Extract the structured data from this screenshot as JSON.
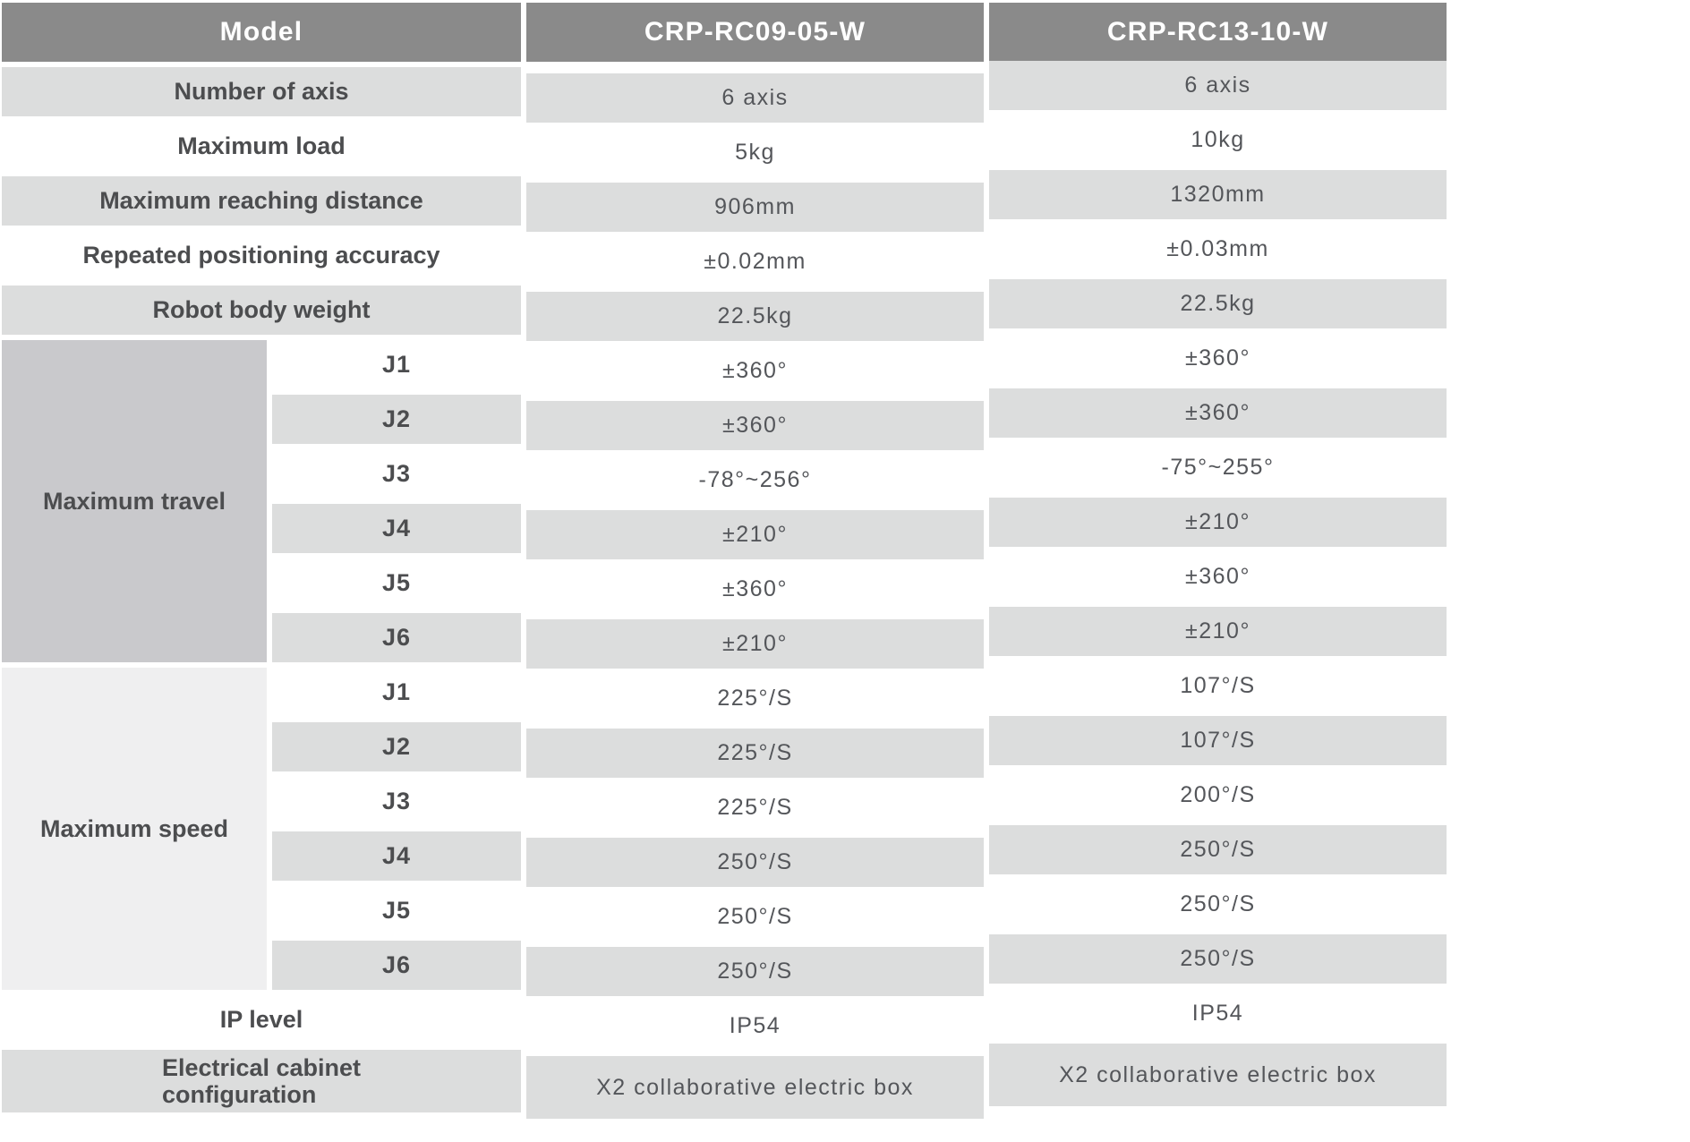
{
  "colors": {
    "header_bg": "#8a8a8a",
    "header_text": "#ffffff",
    "row_stripe": "#dcdddd",
    "travel_group_bg": "#c9c9cc",
    "speed_group_bg": "#efeff0",
    "label_text": "#4c4d4f",
    "value_text": "#54565a"
  },
  "header": {
    "model_label": "Model",
    "models": [
      "CRP-RC09-05-W",
      "CRP-RC13-10-W"
    ]
  },
  "top_rows": [
    {
      "label": "Number of axis",
      "values": [
        "6 axis",
        "6 axis"
      ]
    },
    {
      "label": "Maximum load",
      "values": [
        "5kg",
        "10kg"
      ]
    },
    {
      "label": "Maximum reaching distance",
      "values": [
        "906mm",
        "1320mm"
      ]
    },
    {
      "label": "Repeated positioning accuracy",
      "values": [
        "±0.02mm",
        "±0.03mm"
      ]
    },
    {
      "label": "Robot body weight",
      "values": [
        "22.5kg",
        "22.5kg"
      ]
    }
  ],
  "travel_group": {
    "label": "Maximum travel",
    "rows": [
      {
        "joint": "J1",
        "values": [
          "±360°",
          "±360°"
        ]
      },
      {
        "joint": "J2",
        "values": [
          "±360°",
          "±360°"
        ]
      },
      {
        "joint": "J3",
        "values": [
          "-78°~256°",
          "-75°~255°"
        ]
      },
      {
        "joint": "J4",
        "values": [
          "±210°",
          "±210°"
        ]
      },
      {
        "joint": "J5",
        "values": [
          "±360°",
          "±360°"
        ]
      },
      {
        "joint": "J6",
        "values": [
          "±210°",
          "±210°"
        ]
      }
    ]
  },
  "speed_group": {
    "label": "Maximum speed",
    "rows": [
      {
        "joint": "J1",
        "values": [
          "225°/S",
          "107°/S"
        ]
      },
      {
        "joint": "J2",
        "values": [
          "225°/S",
          "107°/S"
        ]
      },
      {
        "joint": "J3",
        "values": [
          "225°/S",
          "200°/S"
        ]
      },
      {
        "joint": "J4",
        "values": [
          "250°/S",
          "250°/S"
        ]
      },
      {
        "joint": "J5",
        "values": [
          "250°/S",
          "250°/S"
        ]
      },
      {
        "joint": "J6",
        "values": [
          "250°/S",
          "250°/S"
        ]
      }
    ]
  },
  "bottom_rows": [
    {
      "label": "IP level",
      "values": [
        "IP54",
        "IP54"
      ]
    },
    {
      "label": "Electrical cabinet\nconfiguration",
      "values": [
        "X2 collaborative electric box",
        "X2 collaborative electric box"
      ]
    }
  ]
}
